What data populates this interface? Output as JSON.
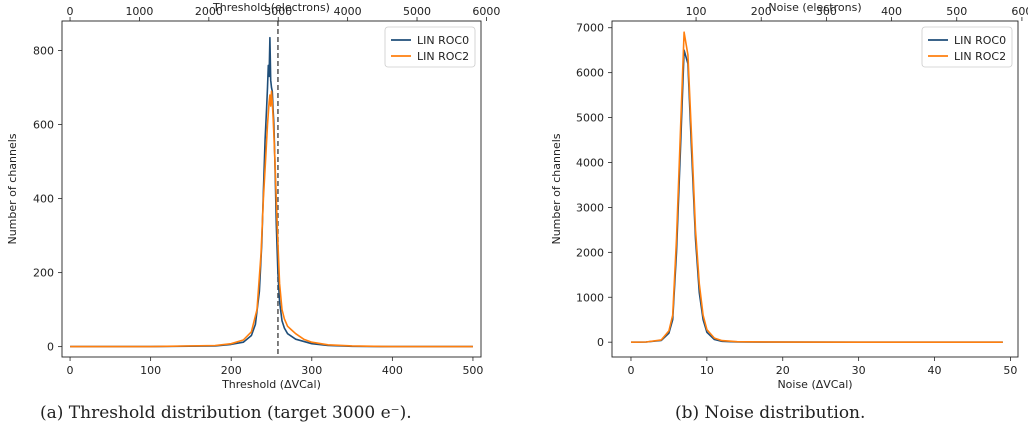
{
  "captions": {
    "a": "(a)  Threshold distribution (target 3000 e⁻).",
    "b": "(b)  Noise distribution."
  },
  "colors": {
    "roc0": "#1f4e79",
    "roc2": "#ff7f0e",
    "ref_line": "#555555"
  },
  "chart_data": [
    {
      "type": "line",
      "panel": "a",
      "xlabel": "Threshold (ΔVCal)",
      "ylabel": "Number of channels",
      "top_xlabel": "Threshold (electrons)",
      "xlim": [
        -10,
        510
      ],
      "ylim": [
        -28,
        880
      ],
      "xticks": [
        0,
        100,
        200,
        300,
        400,
        500
      ],
      "yticks": [
        0,
        200,
        400,
        600,
        800
      ],
      "top_xticks": [
        0,
        1000,
        2000,
        3000,
        4000,
        5000,
        6000
      ],
      "top_xlim": [
        -116,
        5922
      ],
      "ref_x": 258,
      "legend": "top-right",
      "series": [
        {
          "name": "LIN ROC0",
          "color": "#1f4e79",
          "x": [
            0,
            100,
            180,
            200,
            215,
            225,
            230,
            235,
            238,
            240,
            242,
            244,
            245,
            246,
            247,
            248,
            249,
            250,
            251,
            252,
            253,
            254,
            255,
            256,
            258,
            260,
            263,
            266,
            270,
            280,
            300,
            320,
            350,
            400,
            500
          ],
          "y": [
            0,
            0,
            2,
            6,
            12,
            30,
            60,
            150,
            280,
            420,
            560,
            650,
            700,
            760,
            730,
            835,
            720,
            700,
            690,
            640,
            600,
            520,
            430,
            330,
            200,
            120,
            70,
            50,
            35,
            20,
            8,
            3,
            1,
            0,
            0
          ]
        },
        {
          "name": "LIN ROC2",
          "color": "#ff7f0e",
          "x": [
            0,
            100,
            180,
            200,
            215,
            225,
            232,
            237,
            240,
            243,
            245,
            247,
            248,
            249,
            250,
            251,
            252,
            254,
            256,
            258,
            260,
            263,
            266,
            270,
            275,
            280,
            290,
            300,
            320,
            350,
            400,
            500
          ],
          "y": [
            0,
            0,
            3,
            8,
            18,
            40,
            100,
            250,
            400,
            520,
            600,
            660,
            680,
            650,
            690,
            660,
            620,
            520,
            400,
            280,
            170,
            100,
            75,
            55,
            45,
            35,
            20,
            12,
            5,
            2,
            0,
            0
          ]
        }
      ]
    },
    {
      "type": "line",
      "panel": "b",
      "xlabel": "Noise (ΔVCal)",
      "ylabel": "Number of channels",
      "top_xlabel": "Noise (electrons)",
      "xlim": [
        -2.5,
        51
      ],
      "ylim": [
        -330,
        7150
      ],
      "xticks": [
        0,
        10,
        20,
        30,
        40,
        50
      ],
      "yticks": [
        0,
        1000,
        2000,
        3000,
        4000,
        5000,
        6000,
        7000
      ],
      "top_xticks": [
        100,
        200,
        300,
        400,
        500,
        600
      ],
      "top_xlim": [
        -29,
        594
      ],
      "legend": "top-right",
      "series": [
        {
          "name": "LIN ROC0",
          "color": "#1f4e79",
          "x": [
            0,
            2,
            4,
            5,
            5.5,
            6,
            6.5,
            7,
            7.5,
            8,
            8.5,
            9,
            9.5,
            10,
            11,
            12,
            14,
            20,
            30,
            49
          ],
          "y": [
            0,
            5,
            40,
            200,
            500,
            2000,
            4200,
            6500,
            6200,
            4200,
            2300,
            1100,
            500,
            220,
            60,
            20,
            5,
            1,
            0,
            0
          ]
        },
        {
          "name": "LIN ROC2",
          "color": "#ff7f0e",
          "x": [
            0,
            2,
            4,
            5,
            5.5,
            6,
            6.5,
            7,
            7.5,
            8,
            8.5,
            9,
            9.5,
            10,
            11,
            12,
            14,
            20,
            30,
            49
          ],
          "y": [
            0,
            5,
            50,
            250,
            600,
            2300,
            4600,
            6900,
            6400,
            4500,
            2500,
            1300,
            600,
            280,
            90,
            35,
            10,
            2,
            0,
            0
          ]
        }
      ]
    }
  ]
}
